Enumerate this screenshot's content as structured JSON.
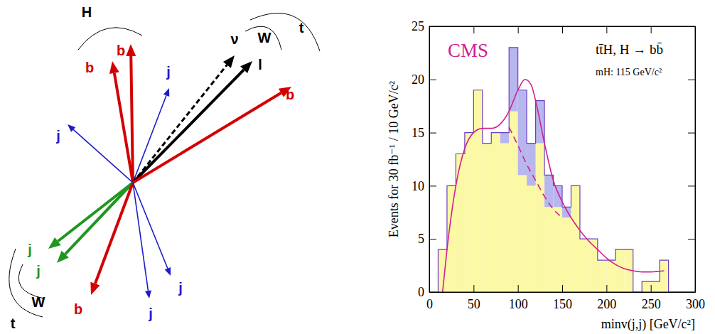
{
  "diagram": {
    "labels": [
      "H",
      "b",
      "b",
      "j",
      "ν",
      "l",
      "W",
      "t",
      "b",
      "j",
      "j",
      "j",
      "W",
      "t",
      "b",
      "j",
      "j"
    ]
  },
  "chart_data": {
    "type": "histogram",
    "stacked": true,
    "annotations": [
      "CMS",
      "tt̄H, H → bb̄",
      "mH: 115 GeV/c²"
    ],
    "x_label": "minv(j,j) [GeV/c²]",
    "y_label": "Events for 30 fb⁻¹ / 10 GeV/c²",
    "bins": [
      0,
      10,
      20,
      30,
      40,
      50,
      60,
      70,
      80,
      90,
      100,
      110,
      120,
      130,
      140,
      150,
      160,
      170,
      180,
      190,
      200,
      210,
      220,
      230,
      240,
      250,
      260,
      270,
      280,
      290,
      300
    ],
    "series": [
      {
        "type": "bar",
        "color": "#fbf8a6",
        "values": [
          0,
          4,
          10,
          13,
          15,
          19,
          14,
          15,
          14,
          17,
          11,
          10,
          14,
          8,
          8,
          7,
          10,
          5,
          5,
          3,
          3,
          4,
          4,
          0,
          1,
          1,
          3,
          0,
          0,
          0
        ]
      },
      {
        "type": "bar",
        "color": "#b7b6ee",
        "values": [
          0,
          0,
          0,
          0,
          0,
          0,
          0,
          0,
          1,
          6,
          8,
          4,
          4,
          3,
          2,
          1,
          0,
          0,
          0,
          0,
          0,
          0,
          0,
          0,
          0,
          0,
          0,
          0,
          0,
          0
        ]
      },
      {
        "type": "line",
        "color": "#d0208f",
        "line_style": "solid",
        "x": [
          15,
          20,
          30,
          40,
          50,
          60,
          70,
          80,
          90,
          100,
          108,
          115,
          120,
          130,
          140,
          150,
          160,
          170,
          180,
          190,
          200,
          210,
          220,
          230,
          240,
          250,
          265
        ],
        "values": [
          0,
          4,
          10,
          13.5,
          15,
          15.4,
          15.4,
          15.8,
          17,
          19,
          20,
          19.5,
          18,
          14,
          10.5,
          8.5,
          7,
          5.8,
          4.8,
          4,
          3.2,
          2.6,
          2.2,
          2,
          1.9,
          1.9,
          2
        ]
      },
      {
        "type": "line",
        "color": "#d0208f",
        "line_style": "dashed",
        "x": [
          90,
          100,
          110,
          120,
          130,
          140,
          150
        ],
        "values": [
          15.5,
          13.8,
          12,
          10.5,
          9,
          7.8,
          7
        ]
      }
    ],
    "xlim": [
      0,
      300
    ],
    "xticks": [
      0,
      50,
      100,
      150,
      200,
      250,
      300
    ],
    "ylim": [
      0,
      25
    ],
    "yticks": [
      0,
      5,
      10,
      15,
      20,
      25
    ]
  }
}
